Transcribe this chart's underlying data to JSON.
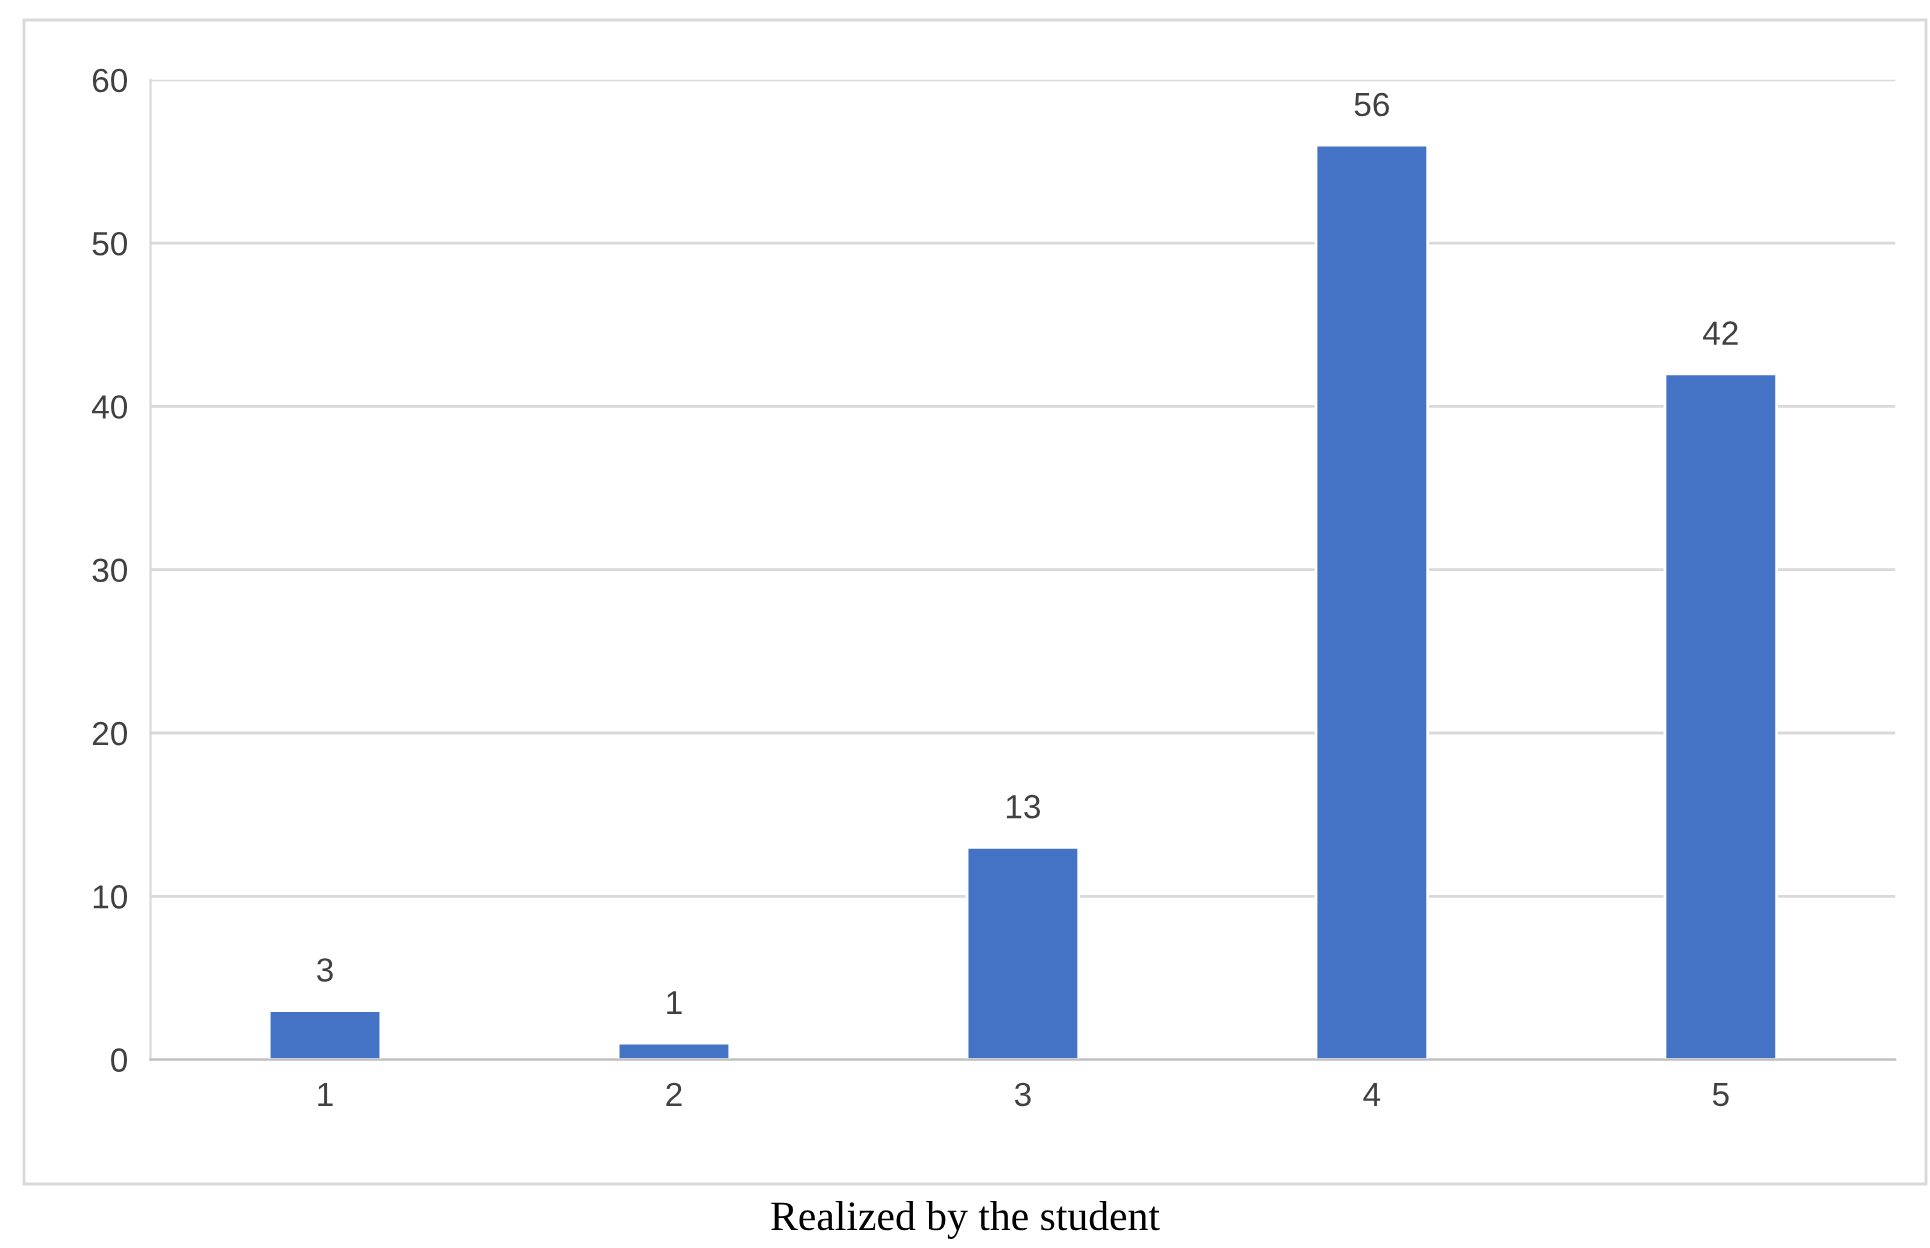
{
  "chart_data": {
    "type": "bar",
    "categories": [
      "1",
      "2",
      "3",
      "4",
      "5"
    ],
    "values": [
      3,
      1,
      13,
      56,
      42
    ],
    "color": "#4472c4",
    "ylim": [
      0,
      60
    ],
    "yticks": [
      0,
      10,
      20,
      30,
      40,
      50,
      60
    ],
    "grid": "y",
    "data_labels": true,
    "annotations": [
      "Realized by the student"
    ]
  }
}
